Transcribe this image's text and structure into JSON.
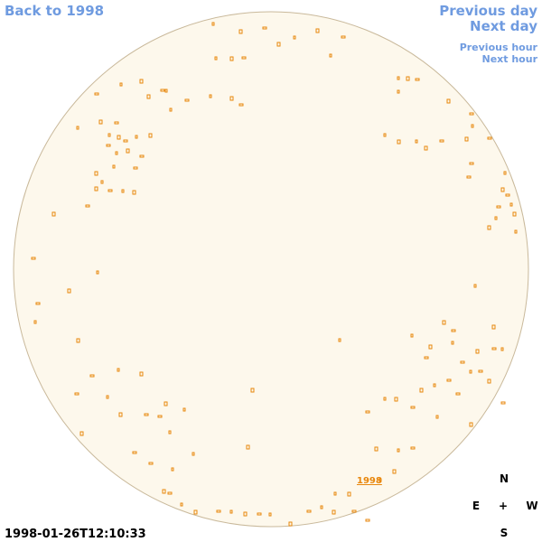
{
  "navigation": {
    "back_to_year": "Back to 1998",
    "previous_day": "Previous day",
    "next_day": "Next day",
    "previous_hour": "Previous hour",
    "next_hour": "Next hour"
  },
  "map": {
    "year_label": "1998",
    "timestamp": "1998-01-26T12:10:33"
  },
  "compass": {
    "north": "N",
    "east": "E",
    "center": "+",
    "west": "W",
    "south": "S"
  }
}
